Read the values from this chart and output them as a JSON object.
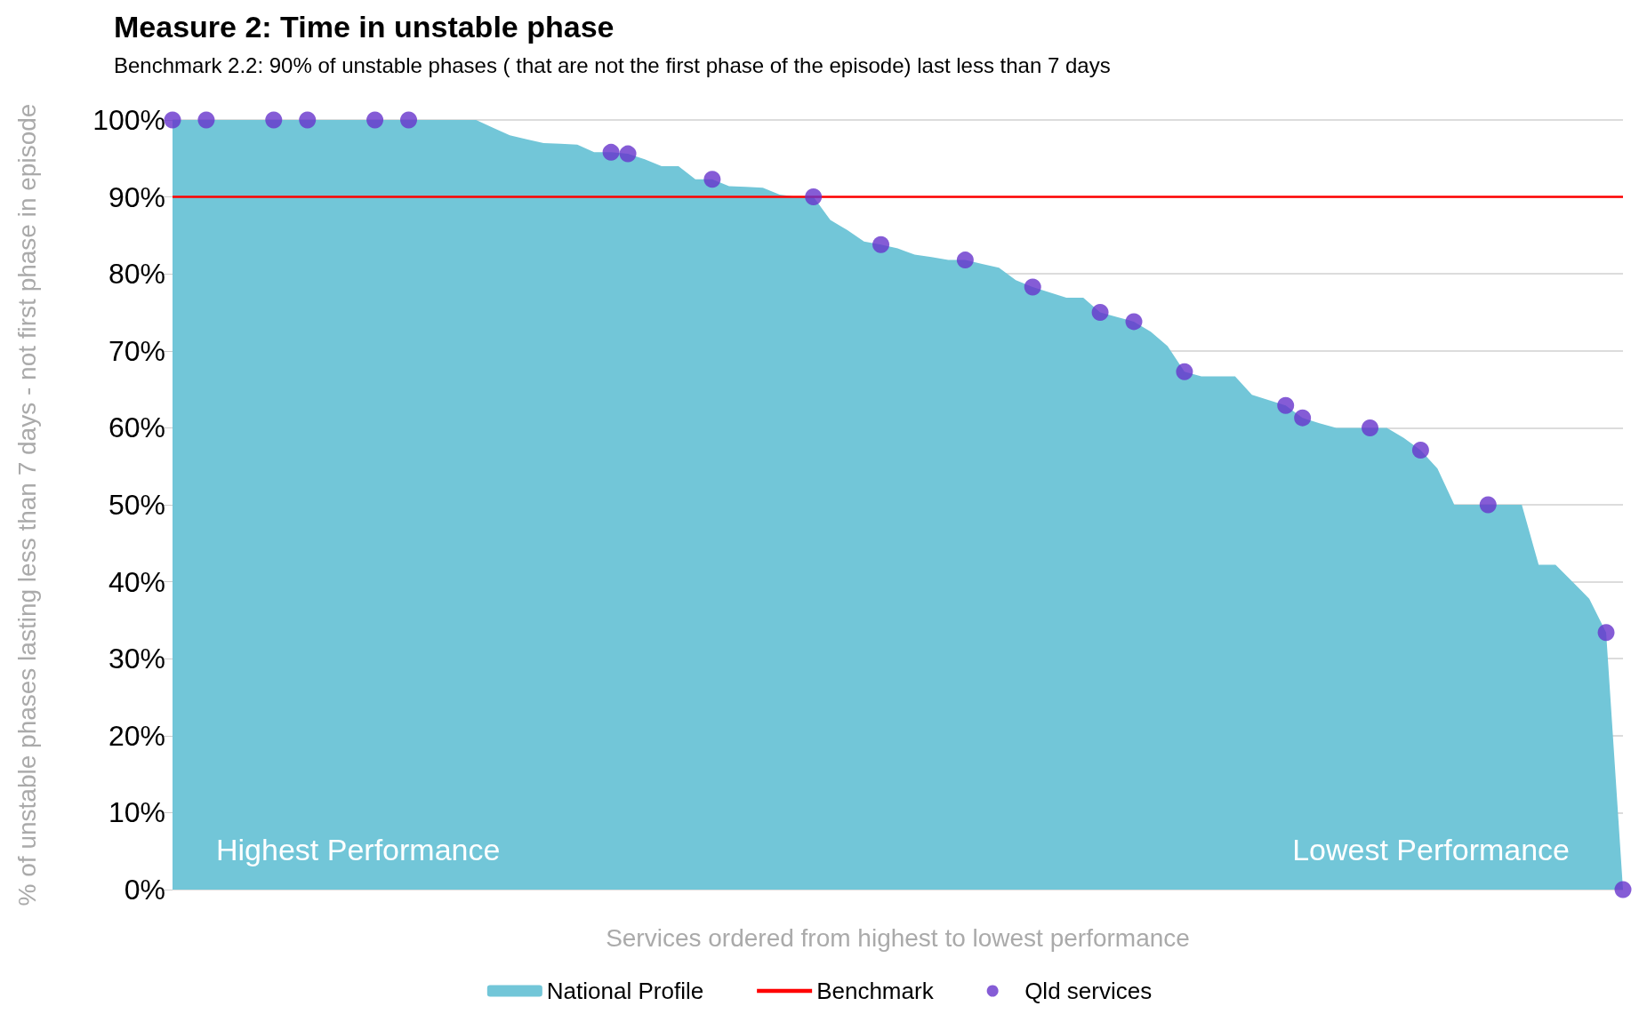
{
  "chart_data": {
    "type": "area",
    "title": "Measure 2: Time in unstable phase",
    "subtitle": "Benchmark 2.2: 90% of unstable phases ( that are not the first phase of the episode) last less than 7 days",
    "xlabel": "Services ordered from highest to lowest performance",
    "ylabel": "% of unstable phases lasting less than 7 days - not first phase in episode",
    "categories": [
      null,
      null,
      null,
      null,
      null,
      null,
      null,
      null,
      null,
      null,
      null,
      null,
      null,
      null,
      null,
      null,
      null,
      null,
      null,
      null,
      null,
      null,
      null,
      null,
      null,
      null,
      null,
      null,
      null,
      null,
      null,
      null,
      null,
      null,
      null,
      null,
      null,
      null,
      null,
      null,
      null,
      null,
      null,
      null,
      null,
      null,
      null,
      null,
      null,
      null,
      null,
      null,
      null,
      null,
      null,
      null,
      null,
      null,
      null,
      null,
      null,
      null,
      null,
      null,
      null,
      null,
      null,
      null,
      null,
      null,
      null,
      null,
      null,
      null,
      null,
      null,
      null,
      null,
      null,
      null,
      null,
      null,
      null,
      null,
      null,
      null,
      null
    ],
    "series": [
      {
        "name": "National Profile",
        "color": "#72c6d8",
        "values": [
          100,
          100,
          100,
          100,
          100,
          100,
          100,
          100,
          100,
          100,
          100,
          100,
          100,
          100,
          100,
          100,
          100,
          100,
          100,
          99.0,
          98.0,
          97.5,
          97.0,
          96.9,
          96.8,
          95.8,
          95.8,
          95.6,
          94.9,
          94.0,
          94.0,
          92.3,
          92.3,
          91.4,
          91.3,
          91.2,
          90.3,
          90.0,
          90.0,
          87.0,
          85.7,
          84.2,
          83.8,
          83.3,
          82.5,
          82.2,
          81.8,
          81.8,
          81.3,
          80.8,
          79.2,
          78.3,
          77.6,
          76.9,
          76.9,
          75.0,
          74.4,
          73.8,
          72.5,
          70.6,
          67.3,
          66.7,
          66.7,
          66.7,
          64.3,
          63.6,
          62.9,
          61.3,
          60.6,
          60,
          60,
          60,
          60,
          58.7,
          57.1,
          54.7,
          50,
          50,
          50,
          50,
          50,
          42.2,
          42.2,
          40,
          37.8,
          33.4,
          0
        ]
      },
      {
        "name": "Qld services",
        "type": "scatter",
        "marker": "circle",
        "color": "#6633cc",
        "values": [
          100,
          null,
          100,
          null,
          null,
          null,
          100,
          null,
          100,
          null,
          null,
          null,
          100,
          null,
          100,
          null,
          null,
          null,
          null,
          null,
          null,
          null,
          null,
          null,
          null,
          null,
          95.8,
          95.6,
          null,
          null,
          null,
          null,
          92.3,
          null,
          null,
          null,
          null,
          null,
          90.0,
          null,
          null,
          null,
          83.8,
          null,
          null,
          null,
          null,
          81.8,
          null,
          null,
          null,
          78.3,
          null,
          null,
          null,
          75.0,
          null,
          73.8,
          null,
          null,
          67.3,
          null,
          null,
          null,
          null,
          null,
          62.9,
          61.3,
          null,
          null,
          null,
          60,
          null,
          null,
          57.1,
          null,
          null,
          null,
          50,
          null,
          null,
          null,
          null,
          null,
          null,
          33.4,
          0
        ]
      }
    ],
    "ref_lines": [
      {
        "axis": "y",
        "value": 90,
        "label": "Benchmark",
        "color": "#ff0000"
      }
    ],
    "annotations": [
      "Highest Performance",
      "Lowest Performance"
    ],
    "ylim": [
      0,
      100
    ],
    "yticks": [
      {
        "value": 0,
        "label": "0%"
      },
      {
        "value": 10,
        "label": "10%"
      },
      {
        "value": 20,
        "label": "20%"
      },
      {
        "value": 30,
        "label": "30%"
      },
      {
        "value": 40,
        "label": "40%"
      },
      {
        "value": 50,
        "label": "50%"
      },
      {
        "value": 60,
        "label": "60%"
      },
      {
        "value": 70,
        "label": "70%"
      },
      {
        "value": 80,
        "label": "80%"
      },
      {
        "value": 90,
        "label": "90%"
      },
      {
        "value": 100,
        "label": "100%"
      }
    ],
    "grid": "y",
    "legend": "bottom",
    "tick_labels": "y"
  }
}
